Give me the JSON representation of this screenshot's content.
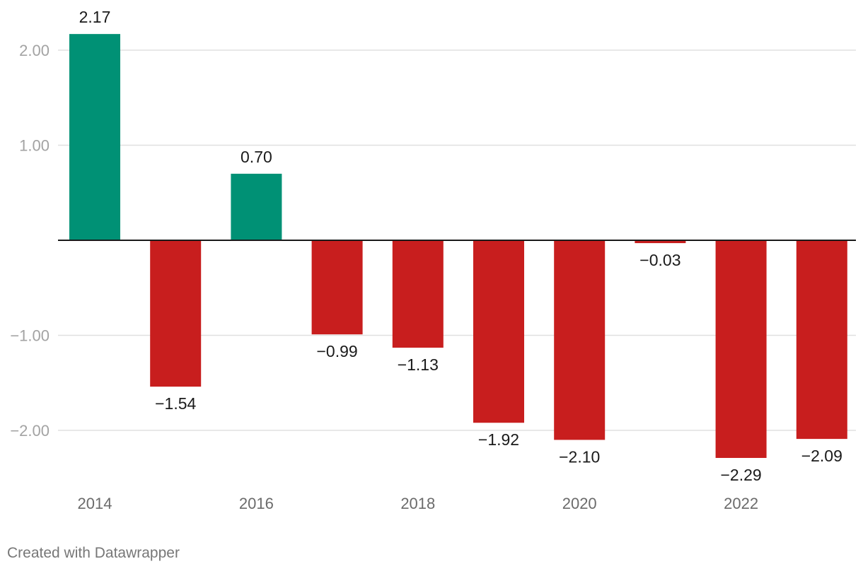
{
  "chart_data": {
    "type": "bar",
    "title": "",
    "xlabel": "",
    "ylabel": "",
    "categories": [
      "2014",
      "2015",
      "2016",
      "2017",
      "2018",
      "2019",
      "2020",
      "2021",
      "2022",
      "2023"
    ],
    "values": [
      2.17,
      -1.54,
      0.7,
      -0.99,
      -1.13,
      -1.92,
      -2.1,
      -0.03,
      -2.29,
      -2.09
    ],
    "value_labels": [
      "2.17",
      "−1.54",
      "0.70",
      "−0.99",
      "−1.13",
      "−1.92",
      "−2.10",
      "−0.03",
      "−2.29",
      "−2.09"
    ],
    "x_tick_labels": [
      "2014",
      "",
      "2016",
      "",
      "2018",
      "",
      "2020",
      "",
      "2022",
      ""
    ],
    "y_ticks": [
      2,
      1,
      -1,
      -2
    ],
    "y_tick_labels": [
      "2.00",
      "1.00",
      "−1.00",
      "−2.00"
    ],
    "ylim": [
      -2.45,
      2.45
    ],
    "grid": true,
    "colors": {
      "positive": "#009175",
      "negative": "#c81e1e",
      "gridline": "#e0e0e0",
      "zero_line": "#1a1a1a"
    }
  },
  "footer": {
    "credit": "Created with Datawrapper"
  }
}
